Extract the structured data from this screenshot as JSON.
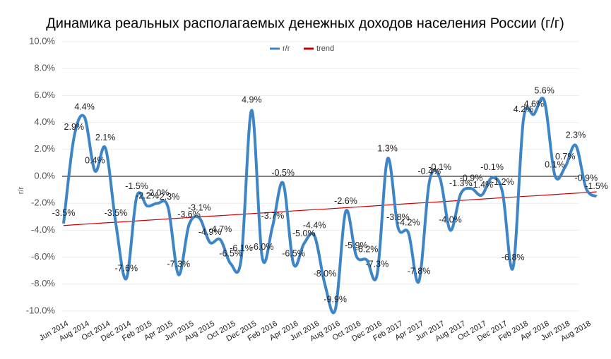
{
  "chart_data": {
    "type": "line",
    "title": "Динамика реальных располагаемых денежных доходов населения России (г/г)",
    "y_label": "r/r",
    "categories": [
      "Jun 2014",
      null,
      "Aug 2014",
      null,
      "Oct 2014",
      null,
      "Dec 2014",
      null,
      "Feb 2015",
      null,
      "Apr 2015",
      null,
      "Jun 2015",
      null,
      "Aug 2015",
      null,
      "Oct 2015",
      null,
      "Dec 2015",
      null,
      "Feb 2016",
      null,
      "Apr 2016",
      null,
      "Jun 2016",
      null,
      "Aug 2016",
      null,
      "Oct 2016",
      null,
      "Dec 2016",
      null,
      "Feb 2017",
      null,
      "Apr 2017",
      null,
      "Jun 2017",
      null,
      "Aug 2017",
      null,
      "Oct 2017",
      null,
      "Dec 2017",
      null,
      "Feb 2018",
      null,
      "Apr 2018",
      null,
      "Jun 2018",
      null,
      "Aug 2018",
      null
    ],
    "series": [
      {
        "name": "r/r",
        "color": "#3d85c6",
        "smooth": true,
        "values": [
          -3.5,
          2.9,
          4.4,
          0.4,
          2.1,
          -3.5,
          -7.6,
          -1.5,
          -2.2,
          -2.0,
          -2.3,
          -7.3,
          -3.6,
          -3.1,
          -4.9,
          -4.7,
          -6.5,
          -6.1,
          4.9,
          -6.0,
          -3.7,
          -0.5,
          -6.5,
          -5.0,
          -4.4,
          -8.0,
          -9.9,
          -2.6,
          -5.9,
          -6.2,
          -7.3,
          1.3,
          -3.8,
          -4.2,
          -7.8,
          -0.4,
          -0.1,
          -4.0,
          -1.3,
          -0.9,
          -1.4,
          -0.1,
          -1.2,
          -6.8,
          4.2,
          4.6,
          5.6,
          0.1,
          0.7,
          2.3,
          -0.9,
          -1.5
        ],
        "value_labels": [
          "-3.5%",
          "2.9%",
          "4.4%",
          "0.4%",
          "2.1%",
          "-3.5%",
          "-7.6%",
          "-1.5%",
          "-2.2%",
          "-2.0%",
          "-2.3%",
          "-7.3%",
          "-3.6%",
          "-3.1%",
          "-4.9%",
          "-4.7%",
          "-6.5%",
          "-6.1%",
          "4.9%",
          "-6.0%",
          "-3.7%",
          "-0.5%",
          "-6.5%",
          "-5.0%",
          "-4.4%",
          "-8.0%",
          "-9.9%",
          "-2.6%",
          "-5.9%",
          "-6.2%",
          "-7.3%",
          "1.3%",
          "-3.8%",
          "-4.2%",
          "-7.8%",
          "-0.4%",
          "-0.1%",
          "-4.0%",
          "-1.3%",
          "-0.9%",
          "-1.4%",
          "-0.1%",
          "-1.2%",
          "-6.8%",
          "4.2%",
          "4.6%",
          "5.6%",
          "0.1%",
          "0.7%",
          "2.3%",
          "-0.9%",
          "-1.5%"
        ]
      },
      {
        "name": "trend",
        "color": "#cc0000",
        "smooth": false,
        "values": [
          -3.65,
          -3.6,
          -3.55,
          -3.5,
          -3.45,
          -3.41,
          -3.36,
          -3.31,
          -3.26,
          -3.21,
          -3.16,
          -3.11,
          -3.06,
          -3.01,
          -2.96,
          -2.92,
          -2.87,
          -2.82,
          -2.77,
          -2.72,
          -2.67,
          -2.62,
          -2.57,
          -2.52,
          -2.47,
          -2.43,
          -2.38,
          -2.33,
          -2.28,
          -2.23,
          -2.18,
          -2.13,
          -2.08,
          -2.03,
          -1.98,
          -1.94,
          -1.89,
          -1.84,
          -1.79,
          -1.74,
          -1.69,
          -1.64,
          -1.59,
          -1.54,
          -1.49,
          -1.45,
          -1.4,
          -1.35,
          -1.3,
          -1.25,
          -1.2,
          -1.15
        ]
      }
    ],
    "ylim": [
      -10,
      10
    ],
    "yticks": [
      {
        "value": -10,
        "label": "-10.0%"
      },
      {
        "value": -8,
        "label": "-8.0%"
      },
      {
        "value": -6,
        "label": "-6.0%"
      },
      {
        "value": -4,
        "label": "-4.0%"
      },
      {
        "value": -2,
        "label": "-2.0%"
      },
      {
        "value": 0,
        "label": "0.0%"
      },
      {
        "value": 2,
        "label": "2.0%"
      },
      {
        "value": 4,
        "label": "4.0%"
      },
      {
        "value": 6,
        "label": "6.0%"
      },
      {
        "value": 8,
        "label": "8.0%"
      },
      {
        "value": 10,
        "label": "10.0%"
      }
    ],
    "grid": true,
    "legend": "top"
  }
}
